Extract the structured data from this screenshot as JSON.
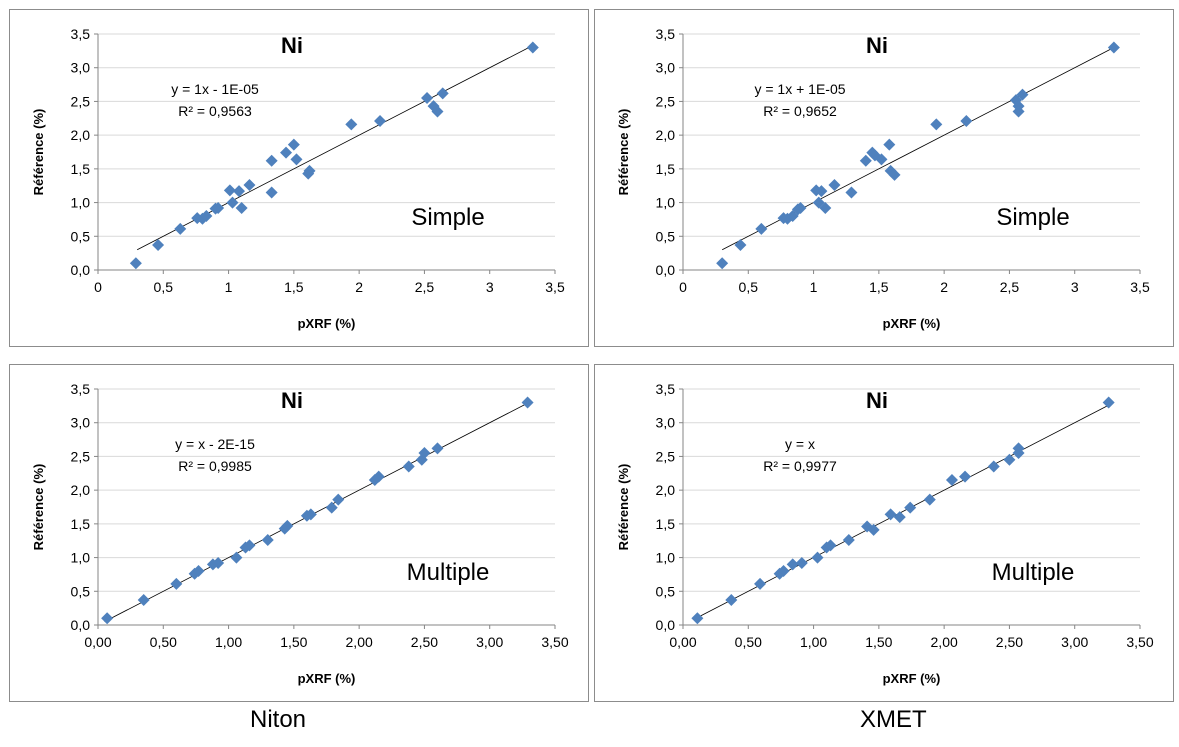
{
  "colors": {
    "marker": "#4f81bd",
    "trendline": "#000000",
    "axis": "#868686",
    "grid": "#d9d9d9"
  },
  "footer": {
    "left": "Niton",
    "right": "XMET"
  },
  "chart_data": [
    {
      "type": "scatter",
      "title": "Ni",
      "xlabel": "pXRF (%)",
      "ylabel": "Référence (%)",
      "xlim": [
        0,
        3.5
      ],
      "ylim": [
        0,
        3.5
      ],
      "xticks": [
        "0",
        "0,5",
        "1",
        "1,5",
        "2",
        "2,5",
        "3",
        "3,5"
      ],
      "yticks": [
        "0,0",
        "0,5",
        "1,0",
        "1,5",
        "2,0",
        "2,5",
        "3,0",
        "3,5"
      ],
      "equation": "y = 1x - 1E-05",
      "r2": "R² = 0,9563",
      "method": "Simple",
      "trendline": [
        [
          0.3,
          0.3
        ],
        [
          3.33,
          3.33
        ]
      ],
      "legend": "none",
      "grid": "horizontal",
      "points": [
        [
          0.29,
          0.1
        ],
        [
          0.46,
          0.37
        ],
        [
          0.63,
          0.61
        ],
        [
          0.76,
          0.77
        ],
        [
          0.8,
          0.76
        ],
        [
          0.83,
          0.8
        ],
        [
          0.9,
          0.91
        ],
        [
          0.92,
          0.92
        ],
        [
          1.01,
          1.18
        ],
        [
          1.03,
          1.0
        ],
        [
          1.08,
          1.17
        ],
        [
          1.1,
          0.92
        ],
        [
          1.16,
          1.26
        ],
        [
          1.33,
          1.15
        ],
        [
          1.33,
          1.62
        ],
        [
          1.44,
          1.74
        ],
        [
          1.5,
          1.86
        ],
        [
          1.52,
          1.64
        ],
        [
          1.61,
          1.43
        ],
        [
          1.62,
          1.47
        ],
        [
          1.94,
          2.16
        ],
        [
          2.16,
          2.21
        ],
        [
          2.52,
          2.55
        ],
        [
          2.57,
          2.43
        ],
        [
          2.6,
          2.35
        ],
        [
          2.64,
          2.62
        ],
        [
          3.33,
          3.3
        ]
      ]
    },
    {
      "type": "scatter",
      "title": "Ni",
      "xlabel": "pXRF (%)",
      "ylabel": "Référence (%)",
      "xlim": [
        0,
        3.5
      ],
      "ylim": [
        0,
        3.5
      ],
      "xticks": [
        "0",
        "0,5",
        "1",
        "1,5",
        "2",
        "2,5",
        "3",
        "3,5"
      ],
      "yticks": [
        "0,0",
        "0,5",
        "1,0",
        "1,5",
        "2,0",
        "2,5",
        "3,0",
        "3,5"
      ],
      "equation": "y = 1x + 1E-05",
      "r2": "R² = 0,9652",
      "method": "Simple",
      "trendline": [
        [
          0.3,
          0.3
        ],
        [
          3.3,
          3.3
        ]
      ],
      "legend": "none",
      "grid": "horizontal",
      "points": [
        [
          0.3,
          0.1
        ],
        [
          0.44,
          0.37
        ],
        [
          0.6,
          0.61
        ],
        [
          0.77,
          0.77
        ],
        [
          0.8,
          0.76
        ],
        [
          0.84,
          0.8
        ],
        [
          0.88,
          0.9
        ],
        [
          0.9,
          0.92
        ],
        [
          1.02,
          1.18
        ],
        [
          1.04,
          1.0
        ],
        [
          1.06,
          1.17
        ],
        [
          1.09,
          0.92
        ],
        [
          1.16,
          1.26
        ],
        [
          1.29,
          1.15
        ],
        [
          1.4,
          1.62
        ],
        [
          1.45,
          1.74
        ],
        [
          1.47,
          1.7
        ],
        [
          1.52,
          1.64
        ],
        [
          1.58,
          1.86
        ],
        [
          1.59,
          1.47
        ],
        [
          1.62,
          1.41
        ],
        [
          1.94,
          2.16
        ],
        [
          2.17,
          2.21
        ],
        [
          2.55,
          2.52
        ],
        [
          2.57,
          2.43
        ],
        [
          2.57,
          2.35
        ],
        [
          2.6,
          2.6
        ],
        [
          3.3,
          3.3
        ]
      ]
    },
    {
      "type": "scatter",
      "title": "Ni",
      "xlabel": "pXRF (%)",
      "ylabel": "Référence (%)",
      "xlim": [
        0,
        3.5
      ],
      "ylim": [
        0,
        3.5
      ],
      "xticks": [
        "0,00",
        "0,50",
        "1,00",
        "1,50",
        "2,00",
        "2,50",
        "3,00",
        "3,50"
      ],
      "yticks": [
        "0,0",
        "0,5",
        "1,0",
        "1,5",
        "2,0",
        "2,5",
        "3,0",
        "3,5"
      ],
      "equation": "y = x - 2E-15",
      "r2": "R² = 0,9985",
      "method": "Multiple",
      "trendline": [
        [
          0.05,
          0.05
        ],
        [
          3.3,
          3.3
        ]
      ],
      "legend": "none",
      "grid": "horizontal",
      "points": [
        [
          0.07,
          0.1
        ],
        [
          0.35,
          0.37
        ],
        [
          0.6,
          0.61
        ],
        [
          0.74,
          0.76
        ],
        [
          0.77,
          0.8
        ],
        [
          0.88,
          0.9
        ],
        [
          0.92,
          0.92
        ],
        [
          1.06,
          1.0
        ],
        [
          1.13,
          1.15
        ],
        [
          1.16,
          1.18
        ],
        [
          1.3,
          1.26
        ],
        [
          1.43,
          1.43
        ],
        [
          1.45,
          1.47
        ],
        [
          1.6,
          1.62
        ],
        [
          1.63,
          1.64
        ],
        [
          1.79,
          1.74
        ],
        [
          1.84,
          1.86
        ],
        [
          2.12,
          2.15
        ],
        [
          2.15,
          2.2
        ],
        [
          2.38,
          2.35
        ],
        [
          2.48,
          2.45
        ],
        [
          2.5,
          2.55
        ],
        [
          2.6,
          2.62
        ],
        [
          3.29,
          3.3
        ]
      ]
    },
    {
      "type": "scatter",
      "title": "Ni",
      "xlabel": "pXRF (%)",
      "ylabel": "Référence (%)",
      "xlim": [
        0,
        3.5
      ],
      "ylim": [
        0,
        3.5
      ],
      "xticks": [
        "0,00",
        "0,50",
        "1,00",
        "1,50",
        "2,00",
        "2,50",
        "3,00",
        "3,50"
      ],
      "yticks": [
        "0,0",
        "0,5",
        "1,0",
        "1,5",
        "2,0",
        "2,5",
        "3,0",
        "3,5"
      ],
      "equation": "y = x",
      "r2": "R² = 0,9977",
      "method": "Multiple",
      "trendline": [
        [
          0.1,
          0.1
        ],
        [
          3.27,
          3.27
        ]
      ],
      "legend": "none",
      "grid": "horizontal",
      "points": [
        [
          0.11,
          0.1
        ],
        [
          0.37,
          0.37
        ],
        [
          0.59,
          0.61
        ],
        [
          0.74,
          0.76
        ],
        [
          0.77,
          0.8
        ],
        [
          0.84,
          0.9
        ],
        [
          0.91,
          0.92
        ],
        [
          1.03,
          1.0
        ],
        [
          1.1,
          1.15
        ],
        [
          1.13,
          1.18
        ],
        [
          1.27,
          1.26
        ],
        [
          1.41,
          1.46
        ],
        [
          1.46,
          1.41
        ],
        [
          1.59,
          1.64
        ],
        [
          1.66,
          1.6
        ],
        [
          1.74,
          1.74
        ],
        [
          1.89,
          1.86
        ],
        [
          2.06,
          2.15
        ],
        [
          2.16,
          2.2
        ],
        [
          2.38,
          2.35
        ],
        [
          2.5,
          2.45
        ],
        [
          2.57,
          2.55
        ],
        [
          2.57,
          2.62
        ],
        [
          3.26,
          3.3
        ]
      ]
    }
  ]
}
